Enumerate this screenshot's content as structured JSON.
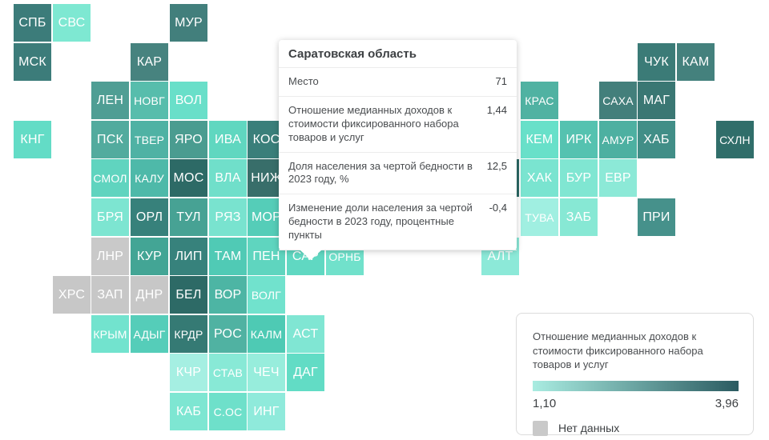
{
  "tooltip": {
    "region": "Саратовская область",
    "rows": [
      {
        "label": "Место",
        "value": "71"
      },
      {
        "label": "Отношение медианных доходов к стоимости фиксированного набора товаров и услуг",
        "value": "1,44"
      },
      {
        "label": "Доля населения за чертой бедности в 2023 году, %",
        "value": "12,5"
      },
      {
        "label": "Изменение доли населения за чертой бедности в 2023 году, процентные пункты",
        "value": "-0,4"
      }
    ]
  },
  "legend": {
    "title": "Отношение медианных доходов к стоимости фиксированного набора товаров и услуг",
    "min": "1,10",
    "max": "3,96",
    "gradient_start": "#a9ece1",
    "gradient_end": "#2b5b61",
    "no_data_label": "Нет данных",
    "no_data_color": "#c9c9c9"
  },
  "chart_data": {
    "type": "heatmap",
    "subtype": "tile-cartogram",
    "value_scale": {
      "min": 1.1,
      "max": 3.96,
      "no_data": "Нет данных"
    },
    "highlighted_region": {
      "code": "САР",
      "name": "Саратовская область",
      "rank": 71,
      "ratio": 1.44,
      "poverty_share_2023": 12.5,
      "poverty_change_2023_pp": -0.4
    },
    "regions": [
      {
        "code": "СПБ",
        "col": 0,
        "row": 0,
        "color": "#3c7c7a"
      },
      {
        "code": "СВС",
        "col": 1,
        "row": 0,
        "color": "#7ee8d2"
      },
      {
        "code": "МУР",
        "col": 4,
        "row": 0,
        "color": "#427f7c"
      },
      {
        "code": "МСК",
        "col": 0,
        "row": 1,
        "color": "#3c7c7a"
      },
      {
        "code": "КАР",
        "col": 3,
        "row": 1,
        "color": "#47837f"
      },
      {
        "code": "ЧУК",
        "col": 16,
        "row": 1,
        "color": "#3b7b77"
      },
      {
        "code": "КАМ",
        "col": 17,
        "row": 1,
        "color": "#44817d"
      },
      {
        "code": "ЛЕН",
        "col": 2,
        "row": 2,
        "color": "#4f9e94"
      },
      {
        "code": "НОВГ",
        "col": 3,
        "row": 2,
        "color": "#57bdac"
      },
      {
        "code": "ВОЛ",
        "col": 4,
        "row": 2,
        "color": "#69dfc9"
      },
      {
        "code": "КРАС",
        "col": 13,
        "row": 2,
        "color": "#50b2a2"
      },
      {
        "code": "САХА",
        "col": 15,
        "row": 2,
        "color": "#437f7b"
      },
      {
        "code": "МАГ",
        "col": 16,
        "row": 2,
        "color": "#3a7773"
      },
      {
        "code": "КНГ",
        "col": 0,
        "row": 3,
        "color": "#63dcc6"
      },
      {
        "code": "ПСК",
        "col": 2,
        "row": 3,
        "color": "#52ab9e"
      },
      {
        "code": "ТВЕР",
        "col": 3,
        "row": 3,
        "color": "#4fb2a4"
      },
      {
        "code": "ЯРО",
        "col": 4,
        "row": 3,
        "color": "#4a9c90"
      },
      {
        "code": "ИВА",
        "col": 5,
        "row": 3,
        "color": "#60d7c0"
      },
      {
        "code": "КОС",
        "col": 6,
        "row": 3,
        "color": "#3a7f7a"
      },
      {
        "code": "КЕМ",
        "col": 13,
        "row": 3,
        "color": "#68e0c9"
      },
      {
        "code": "ИРК",
        "col": 14,
        "row": 3,
        "color": "#55c2b0"
      },
      {
        "code": "АМУР",
        "col": 15,
        "row": 3,
        "color": "#4db0a1"
      },
      {
        "code": "ХАБ",
        "col": 16,
        "row": 3,
        "color": "#418e87"
      },
      {
        "code": "СХЛН",
        "col": 18,
        "row": 3,
        "color": "#306e6a"
      },
      {
        "code": "СМОЛ",
        "col": 2,
        "row": 4,
        "color": "#60d4bf"
      },
      {
        "code": "КАЛУ",
        "col": 3,
        "row": 4,
        "color": "#4eb9a9"
      },
      {
        "code": "МОС",
        "col": 4,
        "row": 4,
        "color": "#2d6a66"
      },
      {
        "code": "ВЛА",
        "col": 5,
        "row": 4,
        "color": "#70dfca"
      },
      {
        "code": "НИЖ",
        "col": 6,
        "row": 4,
        "color": "#386e6a"
      },
      {
        "code": "",
        "col": 12,
        "row": 4,
        "color": "#2d6a66"
      },
      {
        "code": "ХАК",
        "col": 13,
        "row": 4,
        "color": "#7ae4d0"
      },
      {
        "code": "БУР",
        "col": 14,
        "row": 4,
        "color": "#80e6d2"
      },
      {
        "code": "ЕВР",
        "col": 15,
        "row": 4,
        "color": "#8ce9d7"
      },
      {
        "code": "БРЯ",
        "col": 2,
        "row": 5,
        "color": "#7de5d1"
      },
      {
        "code": "ОРЛ",
        "col": 3,
        "row": 5,
        "color": "#37817b"
      },
      {
        "code": "ТУЛ",
        "col": 4,
        "row": 5,
        "color": "#47a294"
      },
      {
        "code": "РЯЗ",
        "col": 5,
        "row": 5,
        "color": "#79e3cf"
      },
      {
        "code": "МОР",
        "col": 6,
        "row": 5,
        "color": "#55cdb8"
      },
      {
        "code": "ТУВА",
        "col": 13,
        "row": 5,
        "color": "#a0efe1"
      },
      {
        "code": "ЗАБ",
        "col": 14,
        "row": 5,
        "color": "#87e8d4"
      },
      {
        "code": "ПРИ",
        "col": 16,
        "row": 5,
        "color": "#46918b"
      },
      {
        "code": "ЛНР",
        "col": 2,
        "row": 6,
        "color": "#c9c9c9"
      },
      {
        "code": "КУР",
        "col": 3,
        "row": 6,
        "color": "#43a595"
      },
      {
        "code": "ЛИП",
        "col": 4,
        "row": 6,
        "color": "#37827c"
      },
      {
        "code": "ТАМ",
        "col": 5,
        "row": 6,
        "color": "#50cab5"
      },
      {
        "code": "ПЕН",
        "col": 6,
        "row": 6,
        "color": "#5fd5bf"
      },
      {
        "code": "САР",
        "col": 7,
        "row": 6,
        "color": "#60d8c2"
      },
      {
        "code": "ОРНБ",
        "col": 8,
        "row": 6,
        "color": "#71e1cb"
      },
      {
        "code": "АЛТ",
        "col": 12,
        "row": 6,
        "color": "#8ce9d8"
      },
      {
        "code": "ХРС",
        "col": 1,
        "row": 7,
        "color": "#c7c7c7"
      },
      {
        "code": "ЗАП",
        "col": 2,
        "row": 7,
        "color": "#c7c7c7"
      },
      {
        "code": "ДНР",
        "col": 3,
        "row": 7,
        "color": "#c7c7c7"
      },
      {
        "code": "БЕЛ",
        "col": 4,
        "row": 7,
        "color": "#2d6a66"
      },
      {
        "code": "ВОР",
        "col": 5,
        "row": 7,
        "color": "#4db5a4"
      },
      {
        "code": "ВОЛГ",
        "col": 6,
        "row": 7,
        "color": "#71e2cd"
      },
      {
        "code": "КРЫМ",
        "col": 2,
        "row": 8,
        "color": "#72e3ce"
      },
      {
        "code": "АДЫГ",
        "col": 3,
        "row": 8,
        "color": "#55cdb9"
      },
      {
        "code": "КРДР",
        "col": 4,
        "row": 8,
        "color": "#357a74"
      },
      {
        "code": "РОС",
        "col": 5,
        "row": 8,
        "color": "#50b2a2"
      },
      {
        "code": "КАЛМ",
        "col": 6,
        "row": 8,
        "color": "#4ecab4"
      },
      {
        "code": "АСТ",
        "col": 7,
        "row": 8,
        "color": "#80e6d3"
      },
      {
        "code": "КЧР",
        "col": 4,
        "row": 9,
        "color": "#a5efe2"
      },
      {
        "code": "СТАВ",
        "col": 5,
        "row": 9,
        "color": "#88e9d6"
      },
      {
        "code": "ЧЕЧ",
        "col": 6,
        "row": 9,
        "color": "#97eddc"
      },
      {
        "code": "ДАГ",
        "col": 7,
        "row": 9,
        "color": "#62dcc5"
      },
      {
        "code": "КАБ",
        "col": 4,
        "row": 10,
        "color": "#7ee6d2"
      },
      {
        "code": "С.ОС",
        "col": 5,
        "row": 10,
        "color": "#6ee0ca"
      },
      {
        "code": "ИНГ",
        "col": 6,
        "row": 10,
        "color": "#8feadb"
      }
    ]
  }
}
